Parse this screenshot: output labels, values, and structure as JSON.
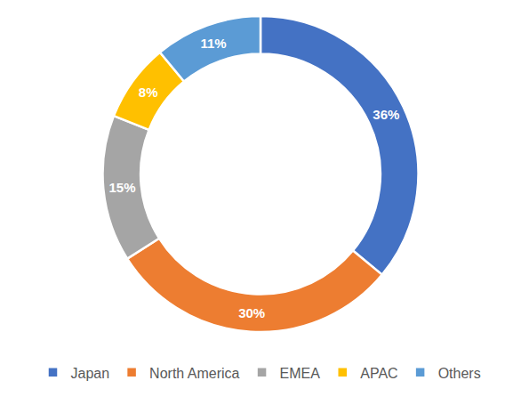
{
  "chart_data": {
    "type": "pie",
    "categories": [
      "Japan",
      "North America",
      "EMEA",
      "APAC",
      "Others"
    ],
    "values": [
      36,
      30,
      15,
      8,
      11
    ],
    "value_labels": [
      "36%",
      "30%",
      "15%",
      "8%",
      "11%"
    ],
    "colors": [
      "#4472c4",
      "#ed7d31",
      "#a5a5a5",
      "#ffc000",
      "#5b9bd5"
    ],
    "data_labels": true,
    "legend": "bottom"
  }
}
